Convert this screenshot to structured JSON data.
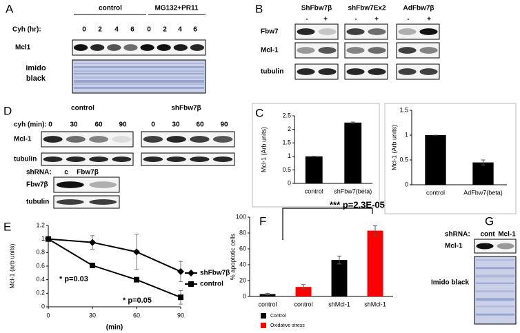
{
  "panels": [
    {
      "label": "A",
      "groups": [
        "control",
        "MG132+PR11"
      ],
      "time_label": "Cyh (hr):",
      "times": [
        "0",
        "2",
        "4",
        "6",
        "0",
        "2",
        "4",
        "6"
      ],
      "rows": [
        "Mcl1",
        "imido black"
      ]
    },
    {
      "label": "B",
      "groups": [
        "ShFbw7β",
        "shFbw7Ex2",
        "AdFbw7β"
      ],
      "signs": [
        "-",
        "+"
      ],
      "rows": [
        "Fbw7",
        "Mcl-1",
        "tubulin"
      ]
    },
    {
      "label": "C"
    },
    {
      "label": "D",
      "groups": [
        "control",
        "shFbw7β"
      ],
      "time_label": "cyh (min):",
      "times": [
        "0",
        "30",
        "60",
        "90",
        "0",
        "30",
        "60",
        "90"
      ],
      "rows": [
        "Mcl-1",
        "tubulin"
      ],
      "inset": {
        "shrna_label": "shRNA:",
        "lanes": [
          "c",
          "Fbw7β"
        ],
        "rows": [
          "Fbw7β",
          "tubulin"
        ]
      }
    },
    {
      "label": "E"
    },
    {
      "label": "F"
    },
    {
      "label": "G",
      "shrna_label": "shRNA:",
      "lanes": [
        "cont",
        "Mcl-1"
      ],
      "rows": [
        "Mcl-1",
        "Imido black"
      ]
    }
  ],
  "chart_data": [
    {
      "type": "bar",
      "ylabel": "Mcl-1 (Arb units)",
      "categories": [
        "control",
        "shFbw7(beta)"
      ],
      "series": [
        {
          "color": "#000000",
          "values": [
            1,
            2.25
          ],
          "errors": [
            0,
            0.02
          ]
        }
      ],
      "ylim": [
        0,
        2.5
      ],
      "yticks": [
        0,
        0.5,
        1,
        1.5,
        2,
        2.5
      ],
      "grid": false
    },
    {
      "type": "bar",
      "ylabel": "Mcl-1 (Arb units)",
      "categories": [
        "control",
        "AdFbw7(beta)"
      ],
      "series": [
        {
          "color": "#000000",
          "values": [
            1,
            0.45
          ],
          "errors": [
            0,
            0.05
          ]
        }
      ],
      "ylim": [
        0,
        1.5
      ],
      "yticks": [
        0,
        0.5,
        1,
        1.5
      ],
      "grid": false
    },
    {
      "type": "line",
      "ylabel": "Mcl-1 (arb units)",
      "xlabel": "(min)",
      "x": [
        0,
        30,
        60,
        90
      ],
      "series": [
        {
          "name": "shFbw7β",
          "color": "#000000",
          "marker": "diamond",
          "values": [
            1,
            0.95,
            0.81,
            0.52
          ],
          "errors": [
            0,
            0.1,
            0.26,
            0.15
          ]
        },
        {
          "name": "control",
          "color": "#000000",
          "marker": "square",
          "values": [
            1,
            0.61,
            0.4,
            0.14
          ],
          "errors": [
            0,
            0.03,
            0.02,
            0.1
          ]
        }
      ],
      "xlim": [
        0,
        90
      ],
      "xticks": [
        0,
        30,
        60,
        90
      ],
      "ylim": [
        0,
        1.2
      ],
      "yticks": [
        0,
        0.2,
        0.4,
        0.6,
        0.8,
        1,
        1.2
      ],
      "annotations": [
        "* p=0.03",
        "* p=0.05"
      ],
      "legend": "right",
      "grid": false
    },
    {
      "type": "bar",
      "ylabel": "% apoptotic cells",
      "categories": [
        "control",
        "control",
        "shMcl-1",
        "shMcl-1"
      ],
      "series": [
        {
          "name": "Control",
          "color": "#000000",
          "values": [
            3,
            null,
            46,
            null
          ],
          "errors": [
            1,
            null,
            5,
            null
          ]
        },
        {
          "name": "Oxidative stress",
          "color": "#ff0000",
          "values": [
            null,
            12,
            null,
            83
          ],
          "errors": [
            null,
            3,
            null,
            6
          ]
        }
      ],
      "ylim": [
        0,
        100
      ],
      "yticks": [
        0,
        20,
        40,
        60,
        80,
        100
      ],
      "annotations": [
        "*** p=2.3E-05"
      ],
      "legend": "bottom",
      "grid": false
    }
  ]
}
